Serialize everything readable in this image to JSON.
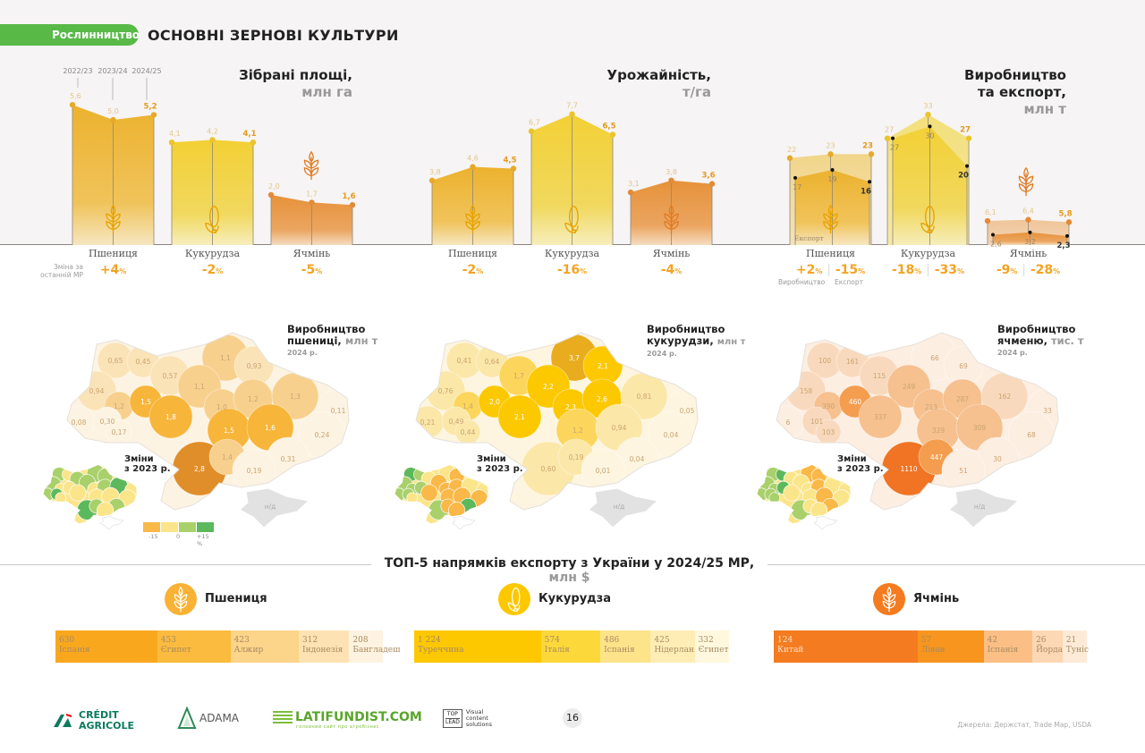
{
  "header": {
    "section": "Рослинництво",
    "title": "ОСНОВНІ ЗЕРНОВІ КУЛЬТУРИ"
  },
  "crops": [
    "Пшениця",
    "Кукурудза",
    "Ячмінь"
  ],
  "years": [
    "2022/23",
    "2023/24",
    "2024/25"
  ],
  "change_note": "Зміна за останній МР",
  "chart_data": [
    {
      "type": "area",
      "title": "Зібрані площі,",
      "unit": "млн га",
      "categories": [
        "Пшениця",
        "Кукурудза",
        "Ячмінь"
      ],
      "series": [
        {
          "values": [
            [
              5.6,
              5.0,
              5.2
            ],
            [
              4.1,
              4.2,
              4.1
            ],
            [
              2.0,
              1.7,
              1.6
            ]
          ],
          "labels": [
            [
              "5,6",
              "5,0",
              "5,2"
            ],
            [
              "4,1",
              "4,2",
              "4,1"
            ],
            [
              "2,0",
              "1,7",
              "1,6"
            ]
          ]
        }
      ],
      "changes": [
        "+4",
        "-2",
        "-5"
      ]
    },
    {
      "type": "area",
      "title": "Урожайність,",
      "unit": "т/га",
      "categories": [
        "Пшениця",
        "Кукурудза",
        "Ячмінь"
      ],
      "series": [
        {
          "values": [
            [
              3.8,
              4.6,
              4.5
            ],
            [
              6.7,
              7.7,
              6.5
            ],
            [
              3.1,
              3.8,
              3.6
            ]
          ],
          "labels": [
            [
              "3,8",
              "4,6",
              "4,5"
            ],
            [
              "6,7",
              "7,7",
              "6,5"
            ],
            [
              "3,1",
              "3,8",
              "3,6"
            ]
          ]
        }
      ],
      "changes": [
        "-2",
        "-16",
        "-4"
      ]
    },
    {
      "type": "area",
      "title": "Виробництво та експорт,",
      "title_lines": [
        "Виробництво",
        "та експорт,"
      ],
      "unit": "млн т",
      "categories": [
        "Пшениця",
        "Кукурудза",
        "Ячмінь"
      ],
      "series": [
        {
          "name": "Виробництво",
          "values": [
            [
              22,
              23,
              23
            ],
            [
              27,
              33,
              27
            ],
            [
              6.1,
              6.4,
              5.8
            ]
          ],
          "labels": [
            [
              "22",
              "23",
              "23"
            ],
            [
              "27",
              "33",
              "27"
            ],
            [
              "6,1",
              "6,4",
              "5,8"
            ]
          ]
        },
        {
          "name": "Експорт",
          "values": [
            [
              17,
              19,
              16
            ],
            [
              27,
              30,
              20
            ],
            [
              2.6,
              3.2,
              2.3
            ]
          ],
          "labels": [
            [
              "17",
              "19",
              "16"
            ],
            [
              "27",
              "30",
              "20"
            ],
            [
              "2,6",
              "3,2",
              "2,3"
            ]
          ]
        }
      ],
      "changes": [
        [
          "+2",
          "-15"
        ],
        [
          "-18",
          "-33"
        ],
        [
          "-9",
          "-28"
        ]
      ],
      "change_labels": [
        "Виробництво",
        "Експорт"
      ],
      "inner_label": "Експорт"
    }
  ],
  "maps": [
    {
      "title": "Виробництво",
      "title2": "пшениці,",
      "unit": "млн т",
      "year": "2024 р.",
      "values": [
        "0,65",
        "0,45",
        "0,57",
        "1,1",
        "0,93",
        "0,94",
        "1,1",
        "1,2",
        "1,5",
        "1,0",
        "1,2",
        "1,3",
        "1,8",
        "0,08",
        "0,30",
        "0,17",
        "0,11",
        "1,5",
        "1,6",
        "0,24",
        "2,8",
        "1,4",
        "0,31",
        "0,19",
        "н/д"
      ],
      "palette": [
        "#fdf3e2",
        "#fbe3b8",
        "#f8d08e",
        "#f7b53a",
        "#e08e2a"
      ],
      "levels": [
        1,
        1,
        1,
        2,
        1,
        1,
        2,
        2,
        3,
        2,
        2,
        2,
        3,
        0,
        0,
        0,
        0,
        3,
        3,
        0,
        4,
        2,
        0,
        0,
        -1
      ],
      "change_levels": [
        2,
        1,
        2,
        2,
        2,
        2,
        2,
        1,
        1,
        1,
        2,
        3,
        1,
        2,
        3,
        1,
        1,
        1,
        1,
        1,
        3,
        2,
        2,
        1,
        -1
      ]
    },
    {
      "title": "Виробництво",
      "title2": "кукурудзи,",
      "unit": "млн т",
      "year": "2024 р.",
      "values": [
        "0,41",
        "0,64",
        "1,7",
        "3,7",
        "2,1",
        "0,76",
        "2,2",
        "1,4",
        "2,0",
        "2,3",
        "2,6",
        "0,81",
        "2,1",
        "0,21",
        "0,49",
        "0,44",
        "0,05",
        "1,2",
        "0,94",
        "0,04",
        "0,60",
        "0,19",
        "0,04",
        "0,01",
        "н/д"
      ],
      "palette": [
        "#fdf5e0",
        "#fbe7a8",
        "#fcd65c",
        "#fcc800",
        "#e8ac1e"
      ],
      "levels": [
        1,
        1,
        2,
        4,
        3,
        1,
        3,
        2,
        3,
        3,
        3,
        1,
        3,
        1,
        1,
        1,
        0,
        2,
        1,
        0,
        1,
        1,
        0,
        0,
        -1
      ],
      "change_levels": [
        3,
        2,
        1,
        1,
        0,
        2,
        0,
        2,
        2,
        0,
        0,
        1,
        0,
        2,
        2,
        1,
        1,
        0,
        0,
        0,
        2,
        0,
        3,
        0,
        -1
      ]
    },
    {
      "title": "Виробництво",
      "title2": "ячменю,",
      "unit": "тис. т",
      "year": "2024 р.",
      "values": [
        "100",
        "161",
        "115",
        "66",
        "69",
        "158",
        "249",
        "390",
        "460",
        "213",
        "287",
        "162",
        "337",
        "6",
        "101",
        "103",
        "33",
        "329",
        "309",
        "68",
        "1110",
        "447",
        "30",
        "51",
        "н/д"
      ],
      "palette": [
        "#fdeee2",
        "#f9d9bd",
        "#f6c08f",
        "#f49d4f",
        "#f07424"
      ],
      "levels": [
        1,
        1,
        1,
        0,
        0,
        1,
        2,
        2,
        3,
        2,
        2,
        1,
        2,
        0,
        1,
        1,
        0,
        2,
        2,
        0,
        4,
        3,
        0,
        0,
        -1
      ],
      "change_levels": [
        2,
        3,
        1,
        0,
        0,
        2,
        1,
        2,
        3,
        1,
        0,
        1,
        1,
        2,
        2,
        2,
        1,
        1,
        0,
        1,
        2,
        1,
        0,
        1,
        -1
      ]
    }
  ],
  "map_change_title": [
    "Зміни",
    "з 2023 р."
  ],
  "change_palette": [
    "#f9b847",
    "#fbe58a",
    "#a9d06b",
    "#5cb85c"
  ],
  "change_legend": [
    "-15",
    "0",
    "+15 %"
  ],
  "crimea_color": "#e2e2e2",
  "export": {
    "title": "ТОП-5 напрямків експорту з України у 2024/25 МР,",
    "unit": "млн $",
    "groups": [
      {
        "crop": "Пшениця",
        "color": "#f9b233",
        "items": [
          {
            "value": "630",
            "v": 630,
            "country": "Іспанія",
            "color": "#f9a81e"
          },
          {
            "value": "453",
            "v": 453,
            "country": "Єгипет",
            "color": "#fbbb3f"
          },
          {
            "value": "423",
            "v": 423,
            "country": "Алжир",
            "color": "#fcd48a"
          },
          {
            "value": "312",
            "v": 312,
            "country": "Індонезія",
            "color": "#fde3b3"
          },
          {
            "value": "208",
            "v": 208,
            "country": "Бангладеш",
            "color": "#fef3e0"
          }
        ]
      },
      {
        "crop": "Кукурудза",
        "color": "#fdc800",
        "items": [
          {
            "value": "1 224",
            "v": 1224,
            "country": "Туреччина",
            "color": "#fdc800"
          },
          {
            "value": "574",
            "v": 574,
            "country": "Італія",
            "color": "#fdd83a"
          },
          {
            "value": "486",
            "v": 486,
            "country": "Іспанія",
            "color": "#fde48a"
          },
          {
            "value": "425",
            "v": 425,
            "country": "Нідерлан.",
            "color": "#feeeb5"
          },
          {
            "value": "332",
            "v": 332,
            "country": "Єгипет",
            "color": "#fff8df"
          }
        ]
      },
      {
        "crop": "Ячмінь",
        "color": "#f47b20",
        "items": [
          {
            "value": "124",
            "v": 124,
            "country": "Китай",
            "color": "#f47b20"
          },
          {
            "value": "57",
            "v": 57,
            "country": "Ліван",
            "color": "#f7951e"
          },
          {
            "value": "42",
            "v": 42,
            "country": "Іспанія",
            "color": "#fbbf86"
          },
          {
            "value": "26",
            "v": 26,
            "country": "Йордан.",
            "color": "#fdd8b5"
          },
          {
            "value": "21",
            "v": 21,
            "country": "Туніс",
            "color": "#fdebd8"
          }
        ]
      }
    ]
  },
  "footer": {
    "logos": {
      "ca1": "CRÉDIT",
      "ca2": "AGRICOLE",
      "adama": "ADAMA",
      "latifundist": "LATIFUNDIST.COM",
      "latifundist_sub": "головний сайт про агробізнес",
      "toplead1": "TOP",
      "toplead2": "LEAD",
      "toplead_sub": [
        "Visual",
        "content",
        "solutions"
      ]
    },
    "page": "16",
    "sources": "Джерела: Держстат, Trade Map, USDA"
  },
  "colors": {
    "wheat": "#ecb22e",
    "corn": "#f3d035",
    "barley": "#e6923a",
    "accent": "#f4a321",
    "green": "#58b947"
  }
}
